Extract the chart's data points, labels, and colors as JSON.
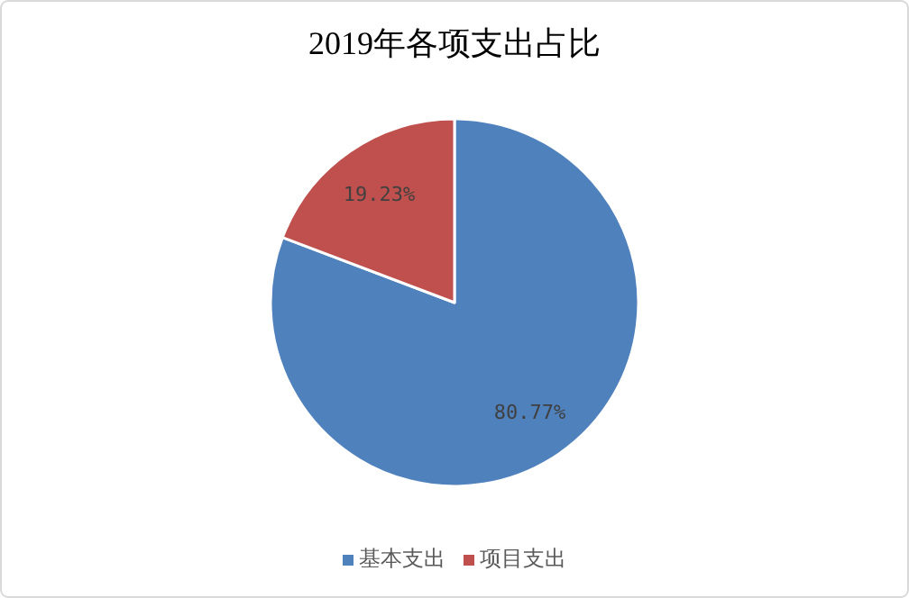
{
  "chart_data": {
    "type": "pie",
    "title": "2019年各项支出占比",
    "categories": [
      "基本支出",
      "项目支出"
    ],
    "values": [
      80.77,
      19.23
    ],
    "colors": [
      "#4f81bd",
      "#c0504d"
    ],
    "value_labels": [
      "80.77%",
      "19.23%"
    ],
    "legend": "bottom"
  }
}
